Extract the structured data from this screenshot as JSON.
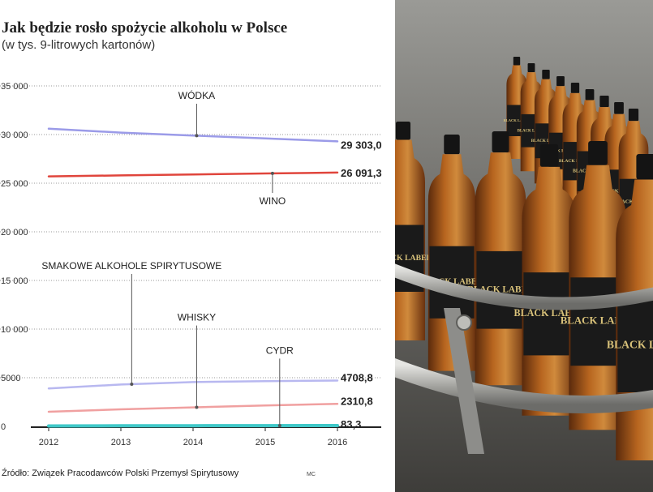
{
  "chart_data": {
    "type": "line",
    "title": "Jak będzie rosło spożycie alkoholu w Polsce",
    "subtitle": "(w tys. 9-litrowych kartonów)",
    "source": "Źródło: Związek Pracodawców Polski Przemysł Spirytusowy",
    "credit": "MC",
    "x": [
      2012,
      2013,
      2014,
      2015,
      2016
    ],
    "x_tick_labels": [
      "2012",
      "2013",
      "2014",
      "2015",
      "2016"
    ],
    "ylim": [
      0,
      35000
    ],
    "y_ticks": [
      0,
      5000,
      10000,
      15000,
      20000,
      25000,
      30000,
      35000
    ],
    "y_tick_labels": [
      "0",
      "5000",
      "10 000",
      "15 000",
      "20 000",
      "25 000",
      "30 000",
      "35 000"
    ],
    "grid": "horizontal dotted",
    "legend": "none (series labeled by annotations)",
    "series": [
      {
        "name": "WÓDKA",
        "color": "#9b9be8",
        "values": [
          30600,
          30200,
          29900,
          29600,
          29303
        ],
        "end_label": "29 303,0",
        "annotation_x": 2014.05,
        "label_position": "above"
      },
      {
        "name": "WINO",
        "color": "#e0453c",
        "values": [
          25700,
          25800,
          25900,
          26000,
          26091.3
        ],
        "end_label": "26 091,3",
        "annotation_x": 2015.1,
        "label_position": "below"
      },
      {
        "name": "SMAKOWE ALKOHOLE SPIRYTUSOWE",
        "color": "#b8b8f0",
        "values": [
          3900,
          4300,
          4550,
          4650,
          4708.8
        ],
        "end_label": "4708,8",
        "annotation_x": 2013.15,
        "label_position": "above"
      },
      {
        "name": "WHISKY",
        "color": "#f0a0a0",
        "values": [
          1500,
          1750,
          1950,
          2150,
          2310.8
        ],
        "end_label": "2310,8",
        "annotation_x": 2014.05,
        "label_position": "above"
      },
      {
        "name": "CYDR",
        "color": "#3fc8c8",
        "values": [
          40,
          55,
          65,
          75,
          83.3
        ],
        "end_label": "83,3",
        "annotation_x": 2015.2,
        "label_position": "above"
      }
    ]
  },
  "photo": {
    "description_icon": "bottling-line-photo",
    "bottle_label": "BLACK LABEL",
    "colors": {
      "background": "#7d7d7a",
      "liquid": "#9c4f1a",
      "cap": "#141414",
      "rail": "#c9c9c6"
    }
  }
}
